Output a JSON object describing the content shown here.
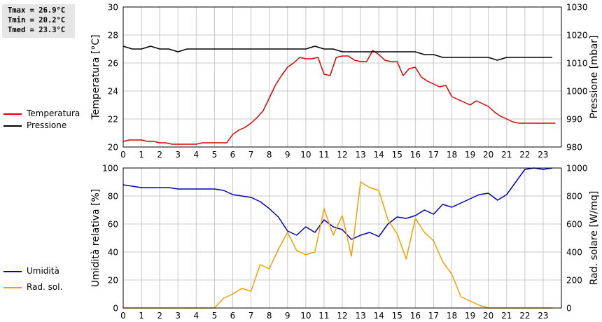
{
  "stats": {
    "tmax": "Tmax = 26.9°C",
    "tmin": "Tmin = 20.2°C",
    "tmed": "Tmed = 23.3°C"
  },
  "colors": {
    "temperature": "#dd0000",
    "pressure": "#000000",
    "humidity": "#0000bb",
    "radiation": "#f0a000",
    "grid": "#c8c8c8",
    "frame": "#000000"
  },
  "legend_top": [
    {
      "label": "Temperatura",
      "color": "#dd0000"
    },
    {
      "label": "Pressione",
      "color": "#000000"
    }
  ],
  "legend_bottom": [
    {
      "label": "Umidità",
      "color": "#0000bb"
    },
    {
      "label": "Rad. sol.",
      "color": "#f0a000"
    }
  ],
  "chart_data": [
    {
      "type": "line",
      "ylabel": "Temperatura [°C]",
      "y2label": "Pressione [mbar]",
      "ylim": [
        20,
        30
      ],
      "y2lim": [
        980,
        1030
      ],
      "yticks": [
        "20",
        "22",
        "24",
        "26",
        "28",
        "30"
      ],
      "y2ticks": [
        "980",
        "990",
        "1000",
        "1010",
        "1020",
        "1030"
      ],
      "xlim": [
        0,
        24
      ],
      "xticks": [
        "0",
        "1",
        "2",
        "3",
        "4",
        "5",
        "6",
        "7",
        "8",
        "9",
        "10",
        "11",
        "12",
        "13",
        "14",
        "15",
        "16",
        "17",
        "18",
        "19",
        "20",
        "21",
        "22",
        "23"
      ],
      "grid": true,
      "series": [
        {
          "name": "Temperatura",
          "axis": "left",
          "x": [
            0,
            0.33,
            0.67,
            1,
            1.33,
            1.67,
            2,
            2.33,
            2.67,
            3,
            3.33,
            3.67,
            4,
            4.33,
            4.67,
            5,
            5.33,
            5.67,
            6,
            6.33,
            6.67,
            7,
            7.33,
            7.67,
            8,
            8.33,
            8.67,
            9,
            9.33,
            9.67,
            10,
            10.33,
            10.67,
            11,
            11.33,
            11.67,
            12,
            12.33,
            12.67,
            13,
            13.33,
            13.67,
            14,
            14.33,
            14.67,
            15,
            15.33,
            15.67,
            16,
            16.33,
            16.67,
            17,
            17.33,
            17.67,
            18,
            18.33,
            18.67,
            19,
            19.33,
            19.67,
            20,
            20.33,
            20.67,
            21,
            21.33,
            21.67,
            22,
            22.33,
            22.67,
            23,
            23.33,
            23.67
          ],
          "values": [
            20.4,
            20.5,
            20.5,
            20.5,
            20.4,
            20.4,
            20.3,
            20.3,
            20.2,
            20.2,
            20.2,
            20.2,
            20.2,
            20.3,
            20.3,
            20.3,
            20.3,
            20.3,
            20.9,
            21.2,
            21.4,
            21.7,
            22.1,
            22.6,
            23.5,
            24.4,
            25.1,
            25.7,
            26.0,
            26.4,
            26.3,
            26.3,
            26.4,
            25.2,
            25.1,
            26.4,
            26.5,
            26.5,
            26.2,
            26.1,
            26.1,
            26.9,
            26.6,
            26.2,
            26.1,
            26.1,
            25.1,
            25.6,
            25.7,
            25.0,
            24.7,
            24.5,
            24.3,
            24.4,
            23.6,
            23.4,
            23.2,
            23.0,
            23.3,
            23.1,
            22.9,
            22.5,
            22.2,
            22.0,
            21.8,
            21.7,
            21.7,
            21.7,
            21.7,
            21.7,
            21.7,
            21.7
          ]
        },
        {
          "name": "Pressione",
          "axis": "right",
          "x": [
            0,
            0.5,
            1,
            1.5,
            2,
            2.5,
            3,
            3.5,
            4,
            4.5,
            5,
            5.5,
            6,
            6.5,
            7,
            7.5,
            8,
            8.5,
            9,
            9.5,
            10,
            10.5,
            11,
            11.5,
            12,
            12.5,
            13,
            13.5,
            14,
            14.5,
            15,
            15.5,
            16,
            16.5,
            17,
            17.5,
            18,
            18.5,
            19,
            19.5,
            20,
            20.5,
            21,
            21.5,
            22,
            22.5,
            23,
            23.5
          ],
          "values": [
            1016,
            1015,
            1015,
            1016,
            1015,
            1015,
            1014,
            1015,
            1015,
            1015,
            1015,
            1015,
            1015,
            1015,
            1015,
            1015,
            1015,
            1015,
            1015,
            1015,
            1015,
            1016,
            1015,
            1015,
            1014,
            1014,
            1014,
            1014,
            1014,
            1014,
            1014,
            1014,
            1014,
            1013,
            1013,
            1012,
            1012,
            1012,
            1012,
            1012,
            1012,
            1011,
            1012,
            1012,
            1012,
            1012,
            1012,
            1012
          ]
        }
      ]
    },
    {
      "type": "line",
      "ylabel": "Umidità relativa [%]",
      "y2label": "Rad. solare [W/mq]",
      "ylim": [
        0,
        100
      ],
      "y2lim": [
        0,
        1000
      ],
      "yticks": [
        "0",
        "20",
        "40",
        "60",
        "80",
        "100"
      ],
      "y2ticks": [
        "0",
        "200",
        "400",
        "600",
        "800",
        "1000"
      ],
      "xlim": [
        0,
        24
      ],
      "xticks": [
        "0",
        "1",
        "2",
        "3",
        "4",
        "5",
        "6",
        "7",
        "8",
        "9",
        "10",
        "11",
        "12",
        "13",
        "14",
        "15",
        "16",
        "17",
        "18",
        "19",
        "20",
        "21",
        "22",
        "23"
      ],
      "grid": true,
      "series": [
        {
          "name": "Umidità",
          "axis": "left",
          "x": [
            0,
            0.5,
            1,
            1.5,
            2,
            2.5,
            3,
            3.5,
            4,
            4.5,
            5,
            5.5,
            6,
            6.5,
            7,
            7.5,
            8,
            8.5,
            9,
            9.5,
            10,
            10.5,
            11,
            11.5,
            12,
            12.5,
            13,
            13.5,
            14,
            14.5,
            15,
            15.5,
            16,
            16.5,
            17,
            17.5,
            18,
            18.5,
            19,
            19.5,
            20,
            20.5,
            21,
            21.5,
            22,
            22.5,
            23,
            23.5
          ],
          "values": [
            88,
            87,
            86,
            86,
            86,
            86,
            85,
            85,
            85,
            85,
            85,
            84,
            81,
            80,
            79,
            76,
            71,
            65,
            55,
            52,
            58,
            54,
            63,
            58,
            56,
            49,
            52,
            54,
            51,
            60,
            65,
            64,
            66,
            70,
            67,
            74,
            72,
            75,
            78,
            81,
            82,
            77,
            81,
            90,
            99,
            100,
            99,
            100
          ]
        },
        {
          "name": "Rad. sol.",
          "axis": "right",
          "x": [
            0,
            0.5,
            1,
            1.5,
            2,
            2.5,
            3,
            3.5,
            4,
            4.5,
            5,
            5.5,
            6,
            6.5,
            7,
            7.5,
            8,
            8.5,
            9,
            9.5,
            10,
            10.5,
            11,
            11.5,
            12,
            12.5,
            13,
            13.5,
            14,
            14.5,
            15,
            15.5,
            16,
            16.5,
            17,
            17.5,
            18,
            18.5,
            19,
            19.5,
            20,
            20.5,
            21,
            21.5,
            22,
            22.5,
            23,
            23.5
          ],
          "values": [
            0,
            0,
            0,
            0,
            0,
            0,
            0,
            0,
            0,
            0,
            0,
            70,
            100,
            140,
            120,
            310,
            280,
            420,
            540,
            410,
            380,
            400,
            710,
            520,
            660,
            370,
            900,
            860,
            840,
            630,
            530,
            350,
            640,
            540,
            480,
            330,
            240,
            80,
            50,
            20,
            0,
            0,
            0,
            0,
            0,
            0,
            0,
            0
          ]
        }
      ]
    }
  ]
}
